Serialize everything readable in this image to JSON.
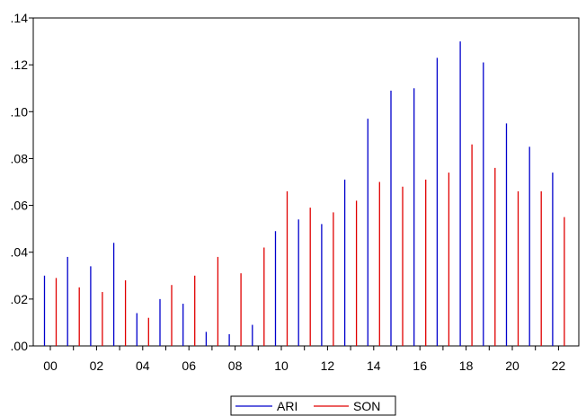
{
  "chart_data": {
    "type": "bar",
    "title": "",
    "xlabel": "",
    "ylabel": "",
    "ylim": [
      0,
      0.14
    ],
    "yticks": [
      0.0,
      0.02,
      0.04,
      0.06,
      0.08,
      0.1,
      0.12,
      0.14
    ],
    "ytick_labels": [
      ".00",
      ".02",
      ".04",
      ".06",
      ".08",
      ".10",
      ".12",
      ".14"
    ],
    "categories": [
      "00",
      "01",
      "02",
      "03",
      "04",
      "05",
      "06",
      "07",
      "08",
      "09",
      "10",
      "11",
      "12",
      "13",
      "14",
      "15",
      "16",
      "17",
      "18",
      "19",
      "20",
      "21",
      "22"
    ],
    "xtick_labels": [
      "00",
      "02",
      "04",
      "06",
      "08",
      "10",
      "12",
      "14",
      "16",
      "18",
      "20",
      "22"
    ],
    "series": [
      {
        "name": "ARI",
        "color": "#0000cc",
        "values": [
          0.03,
          0.038,
          0.034,
          0.044,
          0.014,
          0.02,
          0.018,
          0.006,
          0.005,
          0.009,
          0.049,
          0.054,
          0.052,
          0.071,
          0.097,
          0.109,
          0.11,
          0.123,
          0.13,
          0.121,
          0.095,
          0.085,
          0.074
        ]
      },
      {
        "name": "SON",
        "color": "#e00000",
        "values": [
          0.029,
          0.025,
          0.023,
          0.028,
          0.012,
          0.026,
          0.03,
          0.038,
          0.031,
          0.042,
          0.066,
          0.059,
          0.057,
          0.062,
          0.07,
          0.068,
          0.071,
          0.074,
          0.086,
          0.076,
          0.066,
          0.066,
          0.055
        ]
      }
    ],
    "grid": false,
    "legend": "bottom-center"
  }
}
